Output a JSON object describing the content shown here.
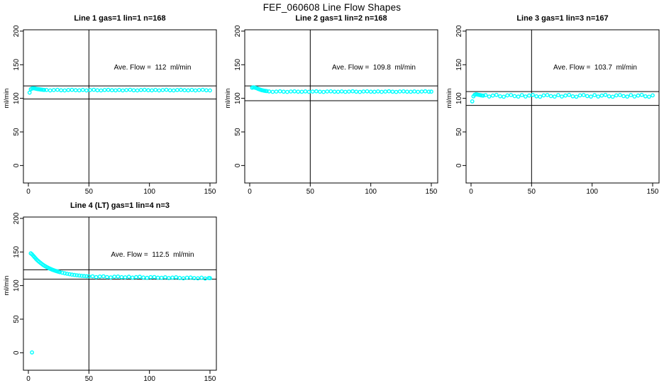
{
  "figure_title": "FEF_060608  Line Flow Shapes",
  "colors": {
    "data_point": "#00ffff",
    "axis": "#000000",
    "background": "#ffffff"
  },
  "axes": {
    "ylabel": "ml/min",
    "xticks": [
      0,
      50,
      100,
      150
    ],
    "yticks": [
      0,
      50,
      100,
      150,
      200
    ],
    "xlim": [
      -4,
      155
    ],
    "ylim": [
      -26,
      202
    ],
    "vline_x": 50,
    "grid": false
  },
  "chart_data": [
    {
      "type": "scatter",
      "title": "Line 1 gas=1 lin=1 n=168",
      "line": 1,
      "gas": 1,
      "lin": 1,
      "n": 168,
      "ave_flow": 112,
      "ave_flow_label": "Ave. Flow =  112  ml/min",
      "upper_line": 118.5,
      "lower_line": 99,
      "points": [
        [
          1,
          108.5
        ],
        [
          2,
          113.5
        ],
        [
          3,
          114.6
        ],
        [
          4,
          115
        ],
        [
          5,
          114.8
        ],
        [
          6,
          114.4
        ],
        [
          7,
          114
        ],
        [
          8,
          113.7
        ],
        [
          9,
          113.4
        ],
        [
          10,
          113.1
        ],
        [
          11,
          112.9
        ],
        [
          12,
          112.7
        ],
        [
          13,
          112.5
        ],
        [
          15,
          112.5
        ],
        [
          18,
          111.8
        ],
        [
          21,
          112.3
        ],
        [
          24,
          112.7
        ],
        [
          27,
          112.0
        ],
        [
          30,
          111.7
        ],
        [
          33,
          112.4
        ],
        [
          36,
          112.6
        ],
        [
          39,
          112.1
        ],
        [
          42,
          111.9
        ],
        [
          45,
          112.5
        ],
        [
          48,
          111.8
        ],
        [
          51,
          112.3
        ],
        [
          54,
          112.7
        ],
        [
          57,
          112.0
        ],
        [
          60,
          111.7
        ],
        [
          63,
          112.4
        ],
        [
          66,
          112.6
        ],
        [
          69,
          112.1
        ],
        [
          72,
          111.9
        ],
        [
          75,
          112.5
        ],
        [
          78,
          111.8
        ],
        [
          81,
          112.3
        ],
        [
          84,
          112.7
        ],
        [
          87,
          112.0
        ],
        [
          90,
          111.7
        ],
        [
          93,
          112.4
        ],
        [
          96,
          112.6
        ],
        [
          99,
          112.1
        ],
        [
          102,
          111.9
        ],
        [
          105,
          112.5
        ],
        [
          108,
          111.8
        ],
        [
          111,
          112.3
        ],
        [
          114,
          112.7
        ],
        [
          117,
          112.0
        ],
        [
          120,
          111.7
        ],
        [
          123,
          112.4
        ],
        [
          126,
          112.6
        ],
        [
          129,
          112.1
        ],
        [
          132,
          111.9
        ],
        [
          135,
          112.5
        ],
        [
          138,
          111.8
        ],
        [
          141,
          112.3
        ],
        [
          144,
          112.7
        ],
        [
          147,
          112.0
        ],
        [
          150,
          111.7
        ]
      ]
    },
    {
      "type": "scatter",
      "title": "Line 2 gas=1 lin=2 n=168",
      "line": 2,
      "gas": 1,
      "lin": 2,
      "n": 168,
      "ave_flow": 109.8,
      "ave_flow_label": "Ave. Flow =  109.8  ml/min",
      "upper_line": 118.5,
      "lower_line": 96.5,
      "points": [
        [
          2,
          115.8
        ],
        [
          3,
          116.3
        ],
        [
          4,
          116.1
        ],
        [
          5,
          115.6
        ],
        [
          6,
          114.9
        ],
        [
          7,
          114.1
        ],
        [
          8,
          113.3
        ],
        [
          9,
          112.7
        ],
        [
          10,
          112.1
        ],
        [
          11,
          111.7
        ],
        [
          12,
          111.3
        ],
        [
          13,
          111.0
        ],
        [
          14,
          110.8
        ],
        [
          16,
          110.3
        ],
        [
          19,
          109.6
        ],
        [
          22,
          110.1
        ],
        [
          25,
          110.5
        ],
        [
          28,
          109.8
        ],
        [
          31,
          109.5
        ],
        [
          34,
          110.2
        ],
        [
          37,
          110.4
        ],
        [
          40,
          109.9
        ],
        [
          43,
          109.7
        ],
        [
          46,
          110.3
        ],
        [
          49,
          109.6
        ],
        [
          52,
          110.1
        ],
        [
          55,
          110.5
        ],
        [
          58,
          109.8
        ],
        [
          61,
          109.5
        ],
        [
          64,
          110.2
        ],
        [
          67,
          110.4
        ],
        [
          70,
          109.9
        ],
        [
          73,
          109.7
        ],
        [
          76,
          110.3
        ],
        [
          79,
          109.6
        ],
        [
          82,
          110.1
        ],
        [
          85,
          110.5
        ],
        [
          88,
          109.8
        ],
        [
          91,
          109.5
        ],
        [
          94,
          110.2
        ],
        [
          97,
          110.4
        ],
        [
          100,
          109.9
        ],
        [
          103,
          109.7
        ],
        [
          106,
          110.3
        ],
        [
          109,
          109.6
        ],
        [
          112,
          110.1
        ],
        [
          115,
          110.5
        ],
        [
          118,
          109.8
        ],
        [
          121,
          109.5
        ],
        [
          124,
          110.2
        ],
        [
          127,
          110.4
        ],
        [
          130,
          109.9
        ],
        [
          133,
          109.7
        ],
        [
          136,
          110.3
        ],
        [
          139,
          109.6
        ],
        [
          142,
          110.1
        ],
        [
          145,
          110.5
        ],
        [
          148,
          109.8
        ],
        [
          150,
          110.0
        ]
      ]
    },
    {
      "type": "scatter",
      "title": "Line 3 gas=1 lin=3 n=167",
      "line": 3,
      "gas": 1,
      "lin": 3,
      "n": 167,
      "ave_flow": 103.7,
      "ave_flow_label": "Ave. Flow =  103.7  ml/min",
      "upper_line": 110,
      "lower_line": 89.5,
      "points": [
        [
          1,
          95.5
        ],
        [
          2,
          103
        ],
        [
          3,
          105.2
        ],
        [
          4,
          106
        ],
        [
          5,
          105.7
        ],
        [
          6,
          105.3
        ],
        [
          7,
          105
        ],
        [
          8,
          104.6
        ],
        [
          9,
          104.3
        ],
        [
          10,
          104
        ],
        [
          12,
          104.8
        ],
        [
          15,
          102.7
        ],
        [
          18,
          104.1
        ],
        [
          21,
          105.1
        ],
        [
          24,
          103.0
        ],
        [
          27,
          102.4
        ],
        [
          30,
          104.4
        ],
        [
          33,
          104.9
        ],
        [
          36,
          103.3
        ],
        [
          39,
          102.6
        ],
        [
          42,
          104.8
        ],
        [
          45,
          102.7
        ],
        [
          48,
          104.1
        ],
        [
          51,
          105.1
        ],
        [
          54,
          103.0
        ],
        [
          57,
          102.4
        ],
        [
          60,
          104.4
        ],
        [
          63,
          104.9
        ],
        [
          66,
          103.3
        ],
        [
          69,
          102.6
        ],
        [
          72,
          104.8
        ],
        [
          75,
          102.7
        ],
        [
          78,
          104.1
        ],
        [
          81,
          105.1
        ],
        [
          84,
          103.0
        ],
        [
          87,
          102.4
        ],
        [
          90,
          104.4
        ],
        [
          93,
          104.9
        ],
        [
          96,
          103.3
        ],
        [
          99,
          102.6
        ],
        [
          102,
          104.8
        ],
        [
          105,
          102.7
        ],
        [
          108,
          104.1
        ],
        [
          111,
          105.1
        ],
        [
          114,
          103.0
        ],
        [
          117,
          102.4
        ],
        [
          120,
          104.4
        ],
        [
          123,
          104.9
        ],
        [
          126,
          103.3
        ],
        [
          129,
          102.6
        ],
        [
          132,
          104.8
        ],
        [
          135,
          102.7
        ],
        [
          138,
          104.1
        ],
        [
          141,
          105.1
        ],
        [
          144,
          103.0
        ],
        [
          147,
          102.4
        ],
        [
          150,
          104.4
        ]
      ]
    },
    {
      "type": "scatter",
      "title": "Line 4 (LT) gas=1 lin=4 n=3",
      "line": 4,
      "lt": true,
      "gas": 1,
      "lin": 4,
      "n": 3,
      "ave_flow": 112.5,
      "ave_flow_label": "Ave. Flow =  112.5  ml/min",
      "upper_line": 123.5,
      "lower_line": 109.5,
      "points": [
        [
          3,
          0.5
        ],
        [
          2,
          148
        ],
        [
          3,
          146.5
        ],
        [
          4,
          144.5
        ],
        [
          5,
          142.5
        ],
        [
          6,
          140.5
        ],
        [
          7,
          138.5
        ],
        [
          8,
          136.8
        ],
        [
          9,
          135.2
        ],
        [
          10,
          133.7
        ],
        [
          11,
          132.3
        ],
        [
          12,
          131
        ],
        [
          13,
          129.8
        ],
        [
          14,
          128.7
        ],
        [
          15,
          127.7
        ],
        [
          16,
          126.7
        ],
        [
          17,
          125.8
        ],
        [
          18,
          125
        ],
        [
          19,
          124.2
        ],
        [
          20,
          123.5
        ],
        [
          21,
          122.8
        ],
        [
          22,
          122.2
        ],
        [
          23,
          121.6
        ],
        [
          24,
          121
        ],
        [
          25,
          120.5
        ],
        [
          26,
          120
        ],
        [
          28,
          119.1
        ],
        [
          30,
          118.3
        ],
        [
          32,
          117.6
        ],
        [
          34,
          116.9
        ],
        [
          36,
          116.3
        ],
        [
          38,
          115.8
        ],
        [
          40,
          115.3
        ],
        [
          42,
          114.9
        ],
        [
          44,
          114.5
        ],
        [
          46,
          114.2
        ],
        [
          48,
          113.9
        ],
        [
          50,
          113.6
        ],
        [
          53,
          113.8
        ],
        [
          56,
          112.6
        ],
        [
          59,
          113.4
        ],
        [
          62,
          113.8
        ],
        [
          65,
          112.7
        ],
        [
          68,
          112.2
        ],
        [
          71,
          113.2
        ],
        [
          74,
          113.4
        ],
        [
          77,
          112.5
        ],
        [
          80,
          112.3
        ],
        [
          83,
          113.1
        ],
        [
          86,
          111.9
        ],
        [
          89,
          112.6
        ],
        [
          92,
          113.1
        ],
        [
          95,
          112.0
        ],
        [
          98,
          111.5
        ],
        [
          101,
          112.5
        ],
        [
          104,
          112.7
        ],
        [
          107,
          111.8
        ],
        [
          110,
          111.6
        ],
        [
          113,
          112.4
        ],
        [
          116,
          111.2
        ],
        [
          119,
          111.9
        ],
        [
          122,
          112.4
        ],
        [
          125,
          111.3
        ],
        [
          128,
          110.8
        ],
        [
          131,
          111.8
        ],
        [
          134,
          112.0
        ],
        [
          137,
          111.1
        ],
        [
          140,
          110.8
        ],
        [
          143,
          111.7
        ],
        [
          146,
          110.5
        ],
        [
          149,
          111.2
        ],
        [
          150,
          111.0
        ]
      ]
    }
  ]
}
